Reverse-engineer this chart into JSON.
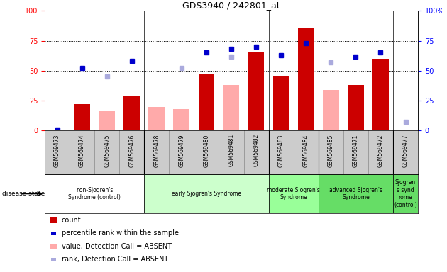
{
  "title": "GDS3940 / 242801_at",
  "samples": [
    "GSM569473",
    "GSM569474",
    "GSM569475",
    "GSM569476",
    "GSM569478",
    "GSM569479",
    "GSM569480",
    "GSM569481",
    "GSM569482",
    "GSM569483",
    "GSM569484",
    "GSM569485",
    "GSM569471",
    "GSM569472",
    "GSM569477"
  ],
  "count": [
    0,
    22,
    0,
    29,
    0,
    0,
    47,
    0,
    65,
    46,
    86,
    0,
    38,
    60,
    0
  ],
  "percentile_rank": [
    1,
    52,
    null,
    58,
    null,
    null,
    65,
    68,
    70,
    63,
    73,
    null,
    62,
    65,
    null
  ],
  "value_absent": [
    null,
    null,
    17,
    null,
    20,
    18,
    null,
    38,
    null,
    null,
    null,
    34,
    null,
    null,
    null
  ],
  "rank_absent": [
    null,
    null,
    45,
    null,
    null,
    52,
    null,
    62,
    null,
    null,
    null,
    57,
    null,
    null,
    7
  ],
  "groups": [
    {
      "label": "non-Sjogren's\nSyndrome (control)",
      "start": 0,
      "end": 3,
      "color": "#ffffff"
    },
    {
      "label": "early Sjogren's Syndrome",
      "start": 4,
      "end": 8,
      "color": "#ccffcc"
    },
    {
      "label": "moderate Sjogren's\nSyndrome",
      "start": 9,
      "end": 10,
      "color": "#99ff99"
    },
    {
      "label": "advanced Sjogren's\nSyndrome",
      "start": 11,
      "end": 13,
      "color": "#66dd66"
    },
    {
      "label": "Sjogren\ns synd\nrome\n(control)",
      "start": 14,
      "end": 14,
      "color": "#66dd66"
    }
  ],
  "ylim": [
    0,
    100
  ],
  "bar_color_count": "#cc0000",
  "bar_color_absent_value": "#ffaaaa",
  "square_color_rank": "#0000cc",
  "square_color_rank_absent": "#aaaadd",
  "bg_color_samples": "#cccccc",
  "right_ytick_labels": [
    "0",
    "25",
    "50",
    "75",
    "100%"
  ]
}
